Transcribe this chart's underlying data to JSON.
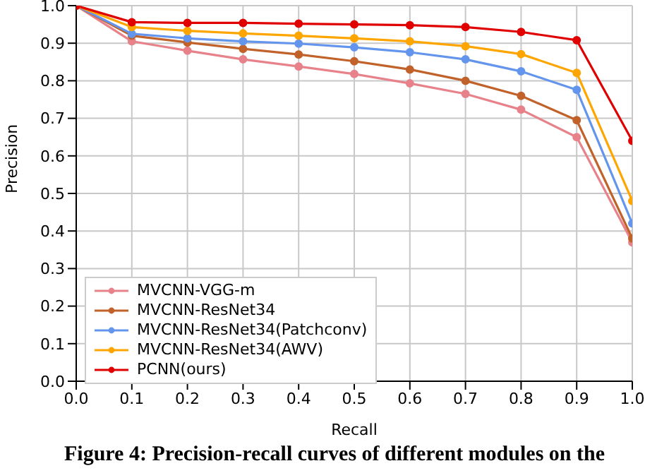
{
  "chart_data": {
    "type": "line",
    "xlabel": "Recall",
    "ylabel": "Precision",
    "x": [
      0,
      0.1,
      0.2,
      0.3,
      0.4,
      0.5,
      0.6,
      0.7,
      0.8,
      0.9,
      1.0
    ],
    "series": [
      {
        "name": "MVCNN-VGG-m",
        "color": "#e8828a",
        "values": [
          1.0,
          0.905,
          0.88,
          0.857,
          0.838,
          0.818,
          0.793,
          0.765,
          0.723,
          0.65,
          0.37
        ]
      },
      {
        "name": "MVCNN-ResNet34",
        "color": "#c0622a",
        "values": [
          1.0,
          0.92,
          0.902,
          0.885,
          0.87,
          0.852,
          0.83,
          0.8,
          0.76,
          0.695,
          0.38
        ]
      },
      {
        "name": "MVCNN-ResNet34(Patchconv)",
        "color": "#6495ed",
        "values": [
          1.0,
          0.925,
          0.913,
          0.905,
          0.899,
          0.889,
          0.876,
          0.857,
          0.825,
          0.776,
          0.42
        ]
      },
      {
        "name": "MVCNN-ResNet34(AWV)",
        "color": "#ffa500",
        "values": [
          1.0,
          0.943,
          0.933,
          0.926,
          0.92,
          0.913,
          0.905,
          0.892,
          0.871,
          0.821,
          0.48
        ]
      },
      {
        "name": "PCNN(ours)",
        "color": "#e00000",
        "values": [
          1.0,
          0.956,
          0.954,
          0.954,
          0.952,
          0.95,
          0.948,
          0.943,
          0.93,
          0.908,
          0.64
        ]
      }
    ],
    "xlim": [
      0,
      1
    ],
    "xticks": [
      {
        "value": 0,
        "label": "0.0"
      },
      0.1,
      0.2,
      0.3,
      0.4,
      0.5,
      0.6,
      0.7,
      0.8,
      0.9,
      {
        "value": 1,
        "label": "1.0"
      }
    ],
    "ylim": [
      0,
      1
    ],
    "yticks": [
      {
        "value": 0,
        "label": "0.0"
      },
      0.1,
      0.2,
      0.3,
      0.4,
      0.5,
      0.6,
      0.7,
      0.8,
      0.9,
      {
        "value": 1,
        "label": "1.0"
      }
    ],
    "grid": true,
    "legend": "bottom left",
    "marker": "circle",
    "line_style": "solid",
    "annotations": [
      "Figure 4: Precision-recall curves of different modules on the"
    ]
  }
}
